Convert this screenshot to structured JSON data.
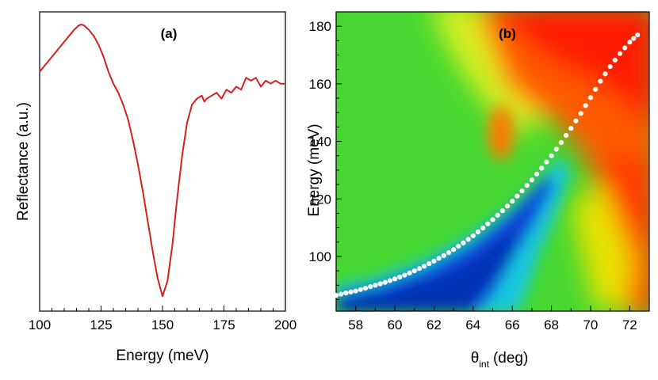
{
  "chart_data": [
    {
      "panel": "(a)",
      "type": "line",
      "xlabel": "Energy (meV)",
      "ylabel": "Reflectance (a.u.)",
      "xlim": [
        100,
        200
      ],
      "ylim": [
        0,
        1
      ],
      "x_ticks": [
        "100",
        "125",
        "150",
        "175",
        "200"
      ],
      "x_tick_values": [
        100,
        125,
        150,
        175,
        200
      ],
      "color": "#d42020",
      "series": [
        {
          "name": "reflectance",
          "x": [
            100,
            102,
            105,
            108,
            110,
            112,
            114,
            116,
            117,
            118,
            120,
            122,
            124,
            126,
            128,
            130,
            132,
            134,
            136,
            138,
            140,
            142,
            144,
            146,
            148,
            150,
            152,
            154,
            156,
            158,
            160,
            162,
            164,
            166,
            167,
            168,
            170,
            172,
            174,
            176,
            178,
            180,
            182,
            184,
            186,
            188,
            190,
            192,
            194,
            196,
            198,
            200
          ],
          "y": [
            0.8,
            0.82,
            0.85,
            0.88,
            0.9,
            0.92,
            0.94,
            0.955,
            0.958,
            0.955,
            0.94,
            0.92,
            0.89,
            0.85,
            0.8,
            0.76,
            0.73,
            0.69,
            0.64,
            0.57,
            0.49,
            0.4,
            0.3,
            0.2,
            0.11,
            0.05,
            0.1,
            0.22,
            0.38,
            0.52,
            0.63,
            0.69,
            0.71,
            0.72,
            0.7,
            0.71,
            0.72,
            0.73,
            0.71,
            0.74,
            0.73,
            0.75,
            0.74,
            0.78,
            0.77,
            0.78,
            0.75,
            0.77,
            0.76,
            0.77,
            0.76,
            0.76
          ]
        }
      ]
    },
    {
      "panel": "(b)",
      "type": "heatmap",
      "xlabel_symbol": "θ",
      "xlabel_sub": "int",
      "xlabel_unit": "(deg)",
      "ylabel": "Energy (meV)",
      "xlim": [
        57,
        73
      ],
      "ylim": [
        81,
        185
      ],
      "x_ticks": [
        "58",
        "60",
        "62",
        "64",
        "66",
        "68",
        "70",
        "72"
      ],
      "x_tick_values": [
        58,
        60,
        62,
        64,
        66,
        68,
        70,
        72
      ],
      "y_ticks": [
        "100",
        "120",
        "140",
        "160",
        "180"
      ],
      "y_tick_values": [
        100,
        120,
        140,
        160,
        180
      ],
      "colormap": [
        "#0a3fd6",
        "#2e86ff",
        "#22e0e8",
        "#2fd65a",
        "#40e010",
        "#d8f020",
        "#ffe600",
        "#ff9a00",
        "#ff4a00",
        "#ff1000"
      ],
      "dispersion_points": {
        "color": "#ffffff",
        "x": [
          57.0,
          57.5,
          58.0,
          58.5,
          59.0,
          59.5,
          60.0,
          60.5,
          61.0,
          61.5,
          62.0,
          62.5,
          63.0,
          63.5,
          64.0,
          64.5,
          65.0,
          65.5,
          66.0,
          66.5,
          67.0,
          67.5,
          68.0,
          68.5,
          69.0,
          69.5,
          70.0,
          70.5,
          71.0,
          71.5,
          72.0,
          72.4
        ],
        "y": [
          86.5,
          87.3,
          88.0,
          89.0,
          90.0,
          91.0,
          92.2,
          93.5,
          95.0,
          96.6,
          98.4,
          100.3,
          102.4,
          104.7,
          107.2,
          109.9,
          112.8,
          115.9,
          119.2,
          122.8,
          126.6,
          130.7,
          135.0,
          139.6,
          144.5,
          149.7,
          155.2,
          160.9,
          166.0,
          170.5,
          174.5,
          177.0
        ]
      }
    }
  ]
}
